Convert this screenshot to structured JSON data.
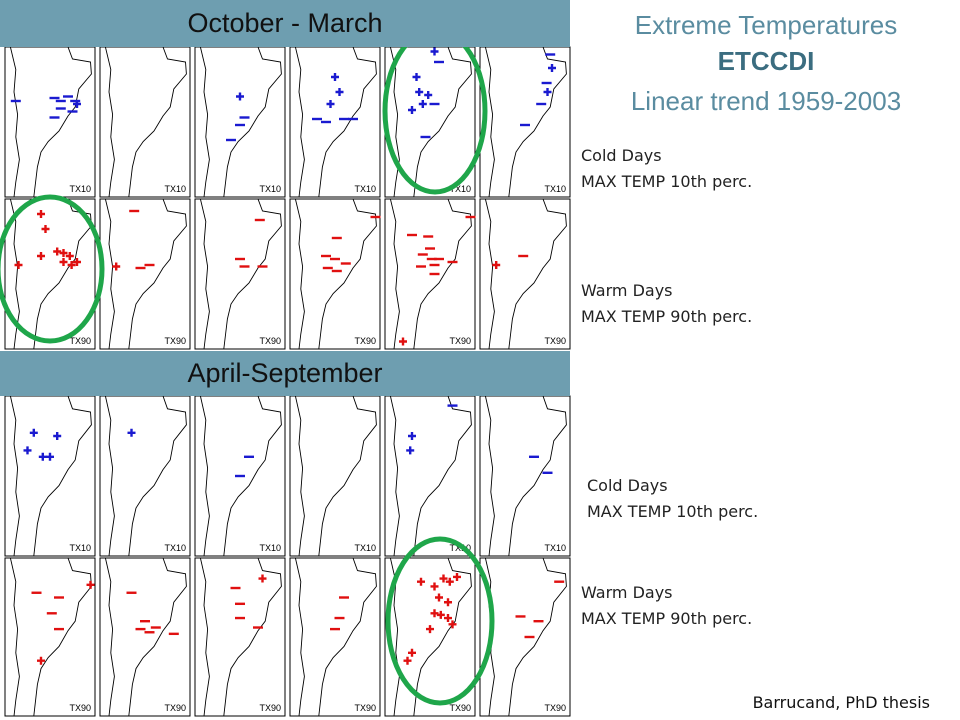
{
  "banners": {
    "top": "October - March",
    "bottom": "April-September"
  },
  "title": {
    "line1": "Extreme Temperatures",
    "line2": "ETCCDI",
    "line3": "Linear trend 1959-2003"
  },
  "labels": {
    "cold_title": "Cold Days",
    "cold_sub": "MAX TEMP 10th perc.",
    "warm_title": "Warm Days",
    "warm_sub": "MAX TEMP 90th perc."
  },
  "panel_tags": {
    "cold": "TX10",
    "warm": "TX90"
  },
  "credit": "Barrucand, PhD thesis",
  "colors": {
    "banner": "#6e9eb0",
    "cold_marker": "#1a1ad0",
    "warm_marker": "#e01010",
    "highlight_ring": "#1fa64a"
  }
}
